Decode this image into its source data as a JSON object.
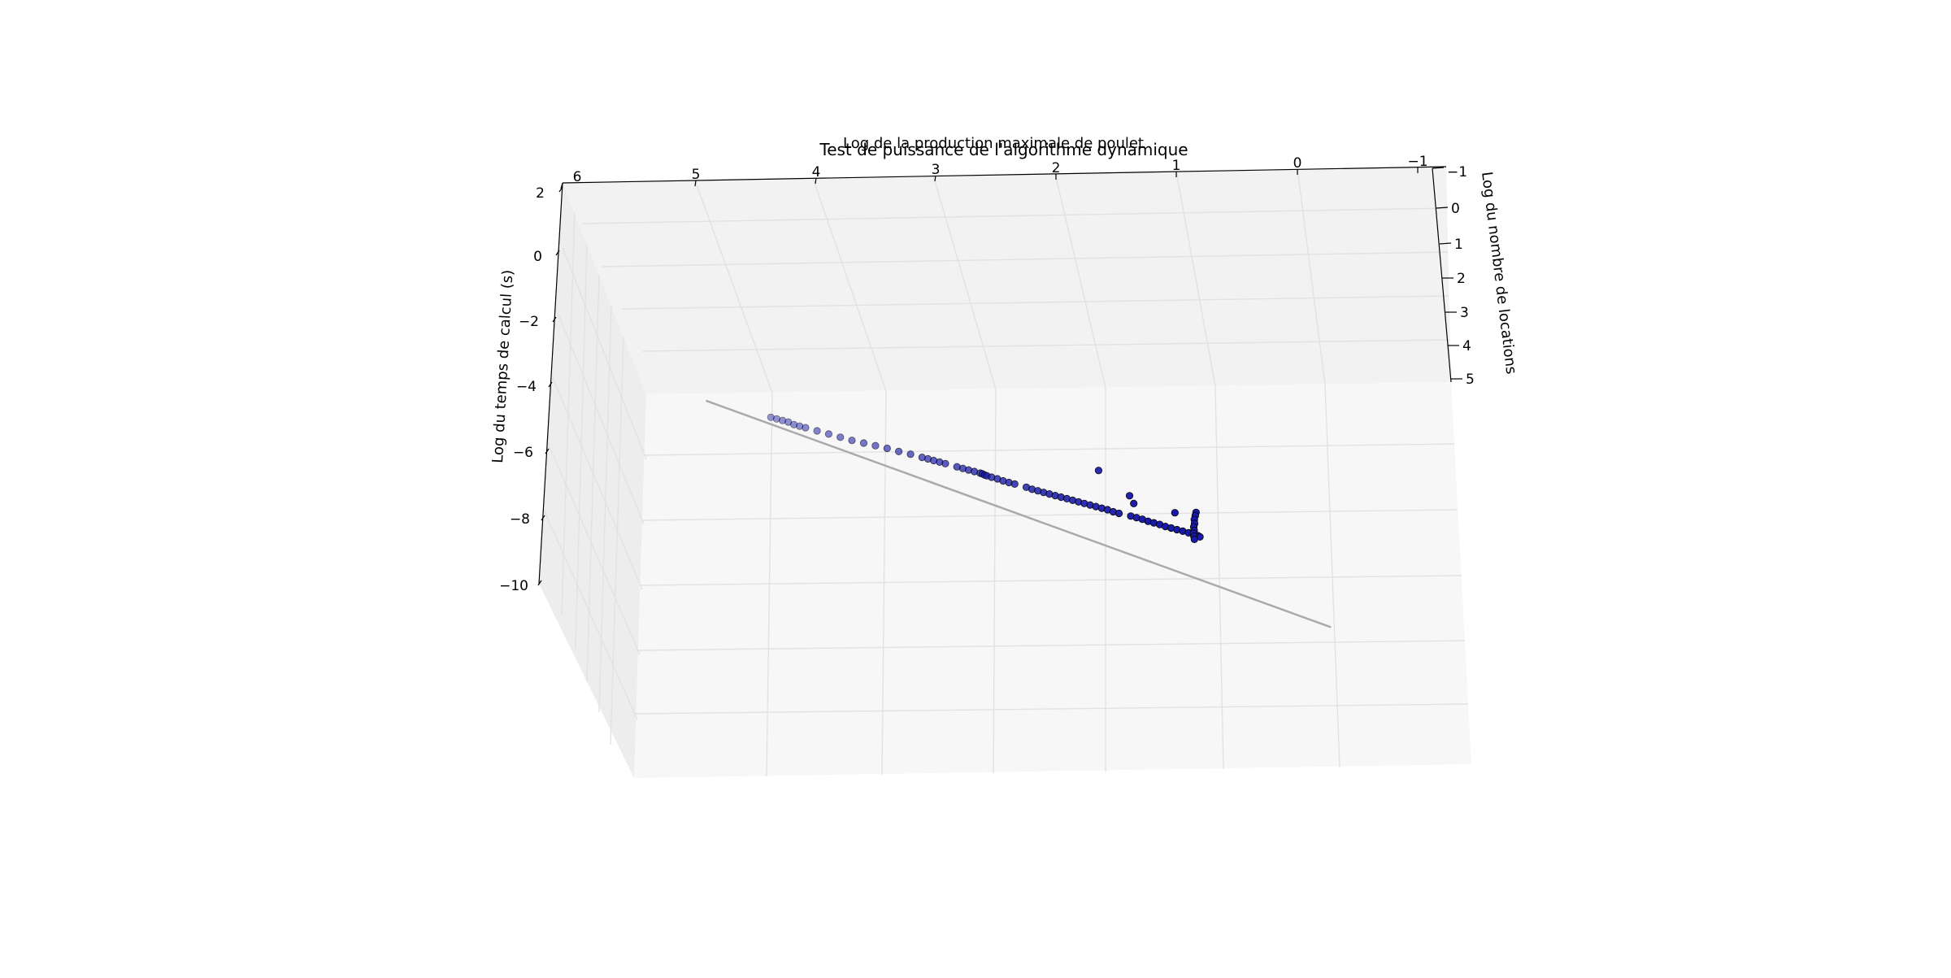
{
  "chart_data": {
    "type": "scatter",
    "projection": "3d",
    "title": "Test de puissance de l'algorithme dynamique",
    "xlabel": "Log de la production maximale de poulet",
    "ylabel": "Log du nombre de locations",
    "zlabel": "Log du temps de calcul (s)",
    "x_ticks": [
      "6",
      "5",
      "4",
      "3",
      "2",
      "1",
      "0",
      "−1"
    ],
    "y_ticks": [
      "−1",
      "0",
      "1",
      "2",
      "3",
      "4",
      "5"
    ],
    "z_ticks": [
      "2",
      "0",
      "−2",
      "−4",
      "−6",
      "−8",
      "−10"
    ],
    "xlim": [
      -1,
      6
    ],
    "ylim": [
      -1,
      5
    ],
    "zlim": [
      -10,
      2
    ],
    "grid": true,
    "point_color": "#1a1aa8",
    "point_edge": "#000000",
    "fit_line_color": "#aaaaaa",
    "series": [
      {
        "values": [
          [
            4.7,
            -5.6
          ],
          [
            4.65,
            -5.62
          ],
          [
            4.6,
            -5.64
          ],
          [
            4.55,
            -5.66
          ],
          [
            4.5,
            -5.7
          ],
          [
            4.45,
            -5.72
          ],
          [
            4.4,
            -5.74
          ],
          [
            4.3,
            -5.78
          ],
          [
            4.2,
            -5.82
          ],
          [
            4.1,
            -5.86
          ],
          [
            4.0,
            -5.9
          ],
          [
            3.9,
            -5.93
          ],
          [
            3.8,
            -5.96
          ],
          [
            3.7,
            -5.99
          ],
          [
            3.6,
            -6.03
          ],
          [
            3.5,
            -6.06
          ],
          [
            3.4,
            -6.1
          ],
          [
            3.35,
            -6.12
          ],
          [
            3.3,
            -6.14
          ],
          [
            3.25,
            -6.16
          ],
          [
            3.2,
            -6.18
          ],
          [
            3.1,
            -6.22
          ],
          [
            3.05,
            -6.24
          ],
          [
            3.0,
            -6.26
          ],
          [
            2.95,
            -6.28
          ],
          [
            2.9,
            -6.3
          ],
          [
            2.88,
            -6.31
          ],
          [
            2.86,
            -6.33
          ],
          [
            2.84,
            -6.34
          ],
          [
            2.8,
            -6.36
          ],
          [
            2.75,
            -6.38
          ],
          [
            2.7,
            -6.41
          ],
          [
            2.65,
            -6.43
          ],
          [
            2.6,
            -6.45
          ],
          [
            2.5,
            -6.49
          ],
          [
            2.45,
            -6.52
          ],
          [
            2.4,
            -6.54
          ],
          [
            2.35,
            -6.56
          ],
          [
            2.3,
            -6.58
          ],
          [
            2.25,
            -6.6
          ],
          [
            2.2,
            -6.62
          ],
          [
            2.15,
            -6.64
          ],
          [
            2.1,
            -6.66
          ],
          [
            2.05,
            -6.68
          ],
          [
            2.0,
            -6.7
          ],
          [
            1.95,
            -6.72
          ],
          [
            1.9,
            -6.74
          ],
          [
            1.85,
            -6.76
          ],
          [
            1.8,
            -6.78
          ],
          [
            1.75,
            -6.81
          ],
          [
            1.7,
            -6.83
          ],
          [
            1.6,
            -6.86
          ],
          [
            1.55,
            -6.88
          ],
          [
            1.5,
            -6.9
          ],
          [
            1.45,
            -6.93
          ],
          [
            1.4,
            -6.95
          ],
          [
            1.35,
            -6.97
          ],
          [
            1.3,
            -7.0
          ],
          [
            1.25,
            -7.02
          ],
          [
            1.2,
            -7.04
          ],
          [
            1.15,
            -7.06
          ],
          [
            1.1,
            -7.08
          ],
          [
            1.05,
            -7.1
          ],
          [
            1.02,
            -7.12
          ],
          [
            1.0,
            -7.14
          ],
          [
            1.95,
            -6.0
          ],
          [
            1.65,
            -6.45
          ],
          [
            1.6,
            -6.6
          ],
          [
            1.25,
            -6.7
          ],
          [
            1.08,
            -6.65
          ],
          [
            1.08,
            -6.72
          ],
          [
            1.08,
            -6.8
          ],
          [
            1.07,
            -6.88
          ],
          [
            1.07,
            -6.95
          ],
          [
            1.06,
            -7.02
          ],
          [
            1.06,
            -7.08
          ],
          [
            1.05,
            -7.14
          ],
          [
            1.04,
            -7.2
          ]
        ]
      }
    ],
    "fit_line": [
      [
        5.25,
        -5.4
      ],
      [
        -0.23,
        -8.7
      ]
    ]
  }
}
